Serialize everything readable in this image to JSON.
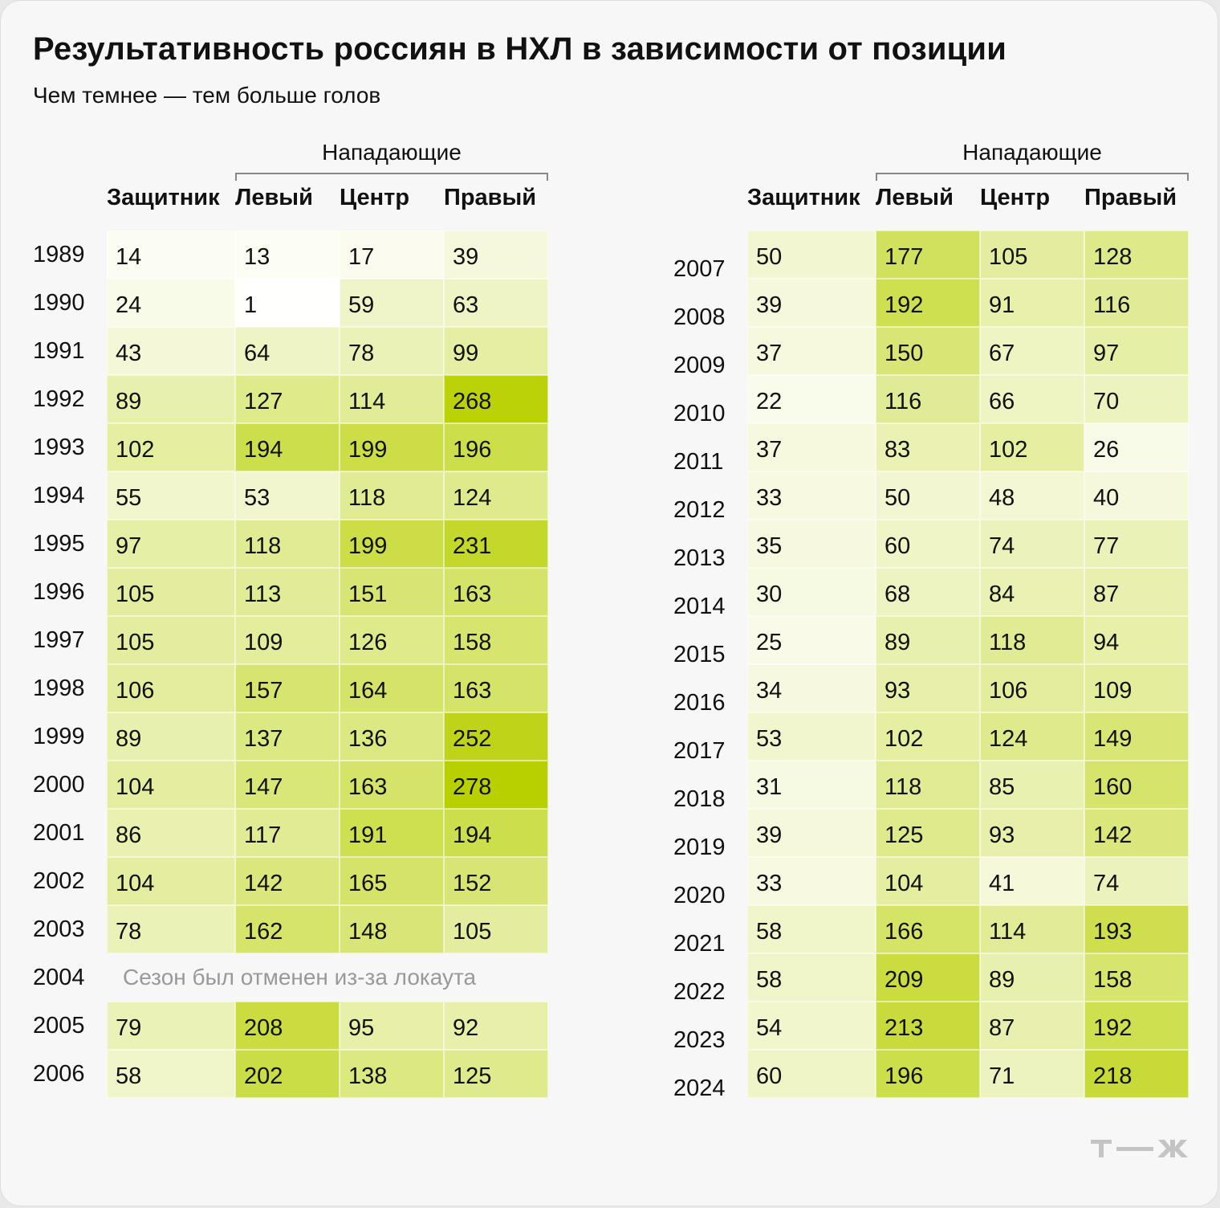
{
  "title": "Результативность россиян в НХЛ в зависимости от позиции",
  "subtitle": "Чем темнее — тем больше голов",
  "group_label": "Нападающие",
  "columns": [
    "Защитник",
    "Левый",
    "Центр",
    "Правый"
  ],
  "lockout_note": "Сезон был отменен из-за локаута",
  "colors": {
    "low": "#ffffff",
    "high": "#b8d000",
    "background": "#f7f7f7"
  },
  "logo": "т—ж",
  "chart_data": {
    "type": "heatmap",
    "title": "Результативность россиян в НХЛ в зависимости от позиции",
    "subtitle": "Чем темнее — тем больше голов",
    "group": "Нападающие",
    "columns": [
      "Защитник",
      "Левый",
      "Центр",
      "Правый"
    ],
    "rows": [
      {
        "year": "1989",
        "values": [
          14,
          13,
          17,
          39
        ]
      },
      {
        "year": "1990",
        "values": [
          24,
          1,
          59,
          63
        ]
      },
      {
        "year": "1991",
        "values": [
          43,
          64,
          78,
          99
        ]
      },
      {
        "year": "1992",
        "values": [
          89,
          127,
          114,
          268
        ]
      },
      {
        "year": "1993",
        "values": [
          102,
          194,
          199,
          196
        ]
      },
      {
        "year": "1994",
        "values": [
          55,
          53,
          118,
          124
        ]
      },
      {
        "year": "1995",
        "values": [
          97,
          118,
          199,
          231
        ]
      },
      {
        "year": "1996",
        "values": [
          105,
          113,
          151,
          163
        ]
      },
      {
        "year": "1997",
        "values": [
          105,
          109,
          126,
          158
        ]
      },
      {
        "year": "1998",
        "values": [
          106,
          157,
          164,
          163
        ]
      },
      {
        "year": "1999",
        "values": [
          89,
          137,
          136,
          252
        ]
      },
      {
        "year": "2000",
        "values": [
          104,
          147,
          163,
          278
        ]
      },
      {
        "year": "2001",
        "values": [
          86,
          117,
          191,
          194
        ]
      },
      {
        "year": "2002",
        "values": [
          104,
          142,
          165,
          152
        ]
      },
      {
        "year": "2003",
        "values": [
          78,
          162,
          148,
          105
        ]
      },
      {
        "year": "2004",
        "values": null,
        "note": "Сезон был отменен из-за локаута"
      },
      {
        "year": "2005",
        "values": [
          79,
          208,
          95,
          92
        ]
      },
      {
        "year": "2006",
        "values": [
          58,
          202,
          138,
          125
        ]
      },
      {
        "year": "2007",
        "values": [
          50,
          177,
          105,
          128
        ]
      },
      {
        "year": "2008",
        "values": [
          39,
          192,
          91,
          116
        ]
      },
      {
        "year": "2009",
        "values": [
          37,
          150,
          67,
          97
        ]
      },
      {
        "year": "2010",
        "values": [
          22,
          116,
          66,
          70
        ]
      },
      {
        "year": "2011",
        "values": [
          37,
          83,
          102,
          26
        ]
      },
      {
        "year": "2012",
        "values": [
          33,
          50,
          48,
          40
        ]
      },
      {
        "year": "2013",
        "values": [
          35,
          60,
          74,
          77
        ]
      },
      {
        "year": "2014",
        "values": [
          30,
          68,
          84,
          87
        ]
      },
      {
        "year": "2015",
        "values": [
          25,
          89,
          118,
          94
        ]
      },
      {
        "year": "2016",
        "values": [
          34,
          93,
          106,
          109
        ]
      },
      {
        "year": "2017",
        "values": [
          53,
          102,
          124,
          149
        ]
      },
      {
        "year": "2018",
        "values": [
          31,
          118,
          85,
          160
        ]
      },
      {
        "year": "2019",
        "values": [
          39,
          125,
          93,
          142
        ]
      },
      {
        "year": "2020",
        "values": [
          33,
          104,
          41,
          74
        ]
      },
      {
        "year": "2021",
        "values": [
          58,
          166,
          114,
          193
        ]
      },
      {
        "year": "2022",
        "values": [
          58,
          209,
          89,
          158
        ]
      },
      {
        "year": "2023",
        "values": [
          54,
          213,
          87,
          192
        ]
      },
      {
        "year": "2024",
        "values": [
          60,
          196,
          71,
          218
        ]
      }
    ],
    "color_scale": {
      "min": 0,
      "max": 278
    }
  }
}
